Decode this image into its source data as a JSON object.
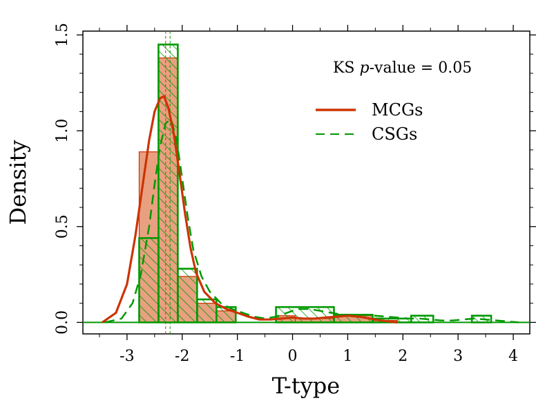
{
  "chart_data": {
    "type": "histogram-density",
    "xlabel": "T-type",
    "ylabel": "Density",
    "xlim": [
      -3.8,
      4.3
    ],
    "ylim": [
      -0.06,
      1.52
    ],
    "x_ticks": [
      -3,
      -2,
      -1,
      0,
      1,
      2,
      3,
      4
    ],
    "x_tick_labels": [
      "-3",
      "-2",
      "-1",
      "0",
      "1",
      "2",
      "3",
      "4"
    ],
    "y_ticks": [
      0.0,
      0.5,
      1.0,
      1.5
    ],
    "y_tick_labels": [
      "0.0",
      "0.5",
      "1.0",
      "1.5"
    ],
    "annotation": {
      "prefix": "KS ",
      "italic": "p",
      "suffix": "-value = 0.05"
    },
    "colors": {
      "mcg": "#cc3300",
      "mcg_fill": "#e8a080",
      "csg": "#009900"
    },
    "legend": [
      {
        "label": "MCGs",
        "style": "solid"
      },
      {
        "label": "CSGs",
        "style": "dashed"
      }
    ],
    "series": [
      {
        "name": "MCGs",
        "kind": "histogram",
        "bins": [
          {
            "x0": -2.78,
            "x1": -2.43,
            "density": 0.89
          },
          {
            "x0": -2.43,
            "x1": -2.08,
            "density": 1.38
          },
          {
            "x0": -2.08,
            "x1": -1.73,
            "density": 0.24
          },
          {
            "x0": -1.73,
            "x1": -1.38,
            "density": 0.1
          },
          {
            "x0": -1.38,
            "x1": -1.03,
            "density": 0.06
          },
          {
            "x0": -0.3,
            "x1": 0.05,
            "density": 0.035
          },
          {
            "x0": 0.05,
            "x1": 0.75,
            "density": 0.02
          },
          {
            "x0": 0.75,
            "x1": 1.45,
            "density": 0.035
          },
          {
            "x0": 1.45,
            "x1": 1.9,
            "density": 0.01
          }
        ]
      },
      {
        "name": "CSGs",
        "kind": "histogram",
        "bins": [
          {
            "x0": -2.78,
            "x1": -2.43,
            "density": 0.44
          },
          {
            "x0": -2.43,
            "x1": -2.08,
            "density": 1.45
          },
          {
            "x0": -2.08,
            "x1": -1.73,
            "density": 0.28
          },
          {
            "x0": -1.73,
            "x1": -1.38,
            "density": 0.12
          },
          {
            "x0": -1.38,
            "x1": -1.03,
            "density": 0.08
          },
          {
            "x0": -0.3,
            "x1": 0.75,
            "density": 0.08
          },
          {
            "x0": 0.75,
            "x1": 1.45,
            "density": 0.04
          },
          {
            "x0": 1.45,
            "x1": 2.15,
            "density": 0.02
          },
          {
            "x0": 2.15,
            "x1": 2.55,
            "density": 0.035
          },
          {
            "x0": 2.55,
            "x1": 3.25,
            "density": 0.0
          },
          {
            "x0": 3.25,
            "x1": 3.6,
            "density": 0.035
          }
        ]
      },
      {
        "name": "MCGs density",
        "kind": "kde",
        "x": [
          -3.45,
          -3.2,
          -3.0,
          -2.85,
          -2.7,
          -2.6,
          -2.5,
          -2.4,
          -2.33,
          -2.25,
          -2.15,
          -2.05,
          -1.95,
          -1.85,
          -1.75,
          -1.6,
          -1.4,
          -1.2,
          -1.0,
          -0.8,
          -0.6,
          -0.4,
          -0.2,
          0.0,
          0.2,
          0.4,
          0.6,
          0.8,
          1.0,
          1.2,
          1.4,
          1.6,
          1.9
        ],
        "y": [
          0.0,
          0.05,
          0.2,
          0.45,
          0.75,
          0.95,
          1.1,
          1.17,
          1.18,
          1.12,
          0.98,
          0.78,
          0.57,
          0.39,
          0.26,
          0.16,
          0.1,
          0.07,
          0.05,
          0.03,
          0.015,
          0.015,
          0.02,
          0.025,
          0.02,
          0.02,
          0.025,
          0.03,
          0.035,
          0.03,
          0.02,
          0.01,
          0.0
        ]
      },
      {
        "name": "CSGs density",
        "kind": "kde",
        "x": [
          -3.4,
          -3.1,
          -2.9,
          -2.75,
          -2.6,
          -2.5,
          -2.4,
          -2.3,
          -2.2,
          -2.1,
          -2.0,
          -1.9,
          -1.8,
          -1.65,
          -1.5,
          -1.3,
          -1.1,
          -0.9,
          -0.7,
          -0.5,
          -0.3,
          -0.1,
          0.1,
          0.3,
          0.5,
          0.7,
          0.9,
          1.1,
          1.3,
          1.5,
          1.7,
          1.9,
          2.1,
          2.3,
          2.5,
          2.7,
          2.9,
          3.1,
          3.3,
          3.5,
          3.7,
          3.9,
          4.1
        ],
        "y": [
          0.0,
          0.02,
          0.1,
          0.25,
          0.5,
          0.72,
          0.92,
          1.04,
          1.06,
          0.95,
          0.75,
          0.55,
          0.38,
          0.24,
          0.16,
          0.1,
          0.07,
          0.05,
          0.03,
          0.02,
          0.03,
          0.05,
          0.07,
          0.07,
          0.06,
          0.05,
          0.04,
          0.04,
          0.04,
          0.035,
          0.03,
          0.025,
          0.02,
          0.02,
          0.015,
          0.01,
          0.01,
          0.015,
          0.02,
          0.015,
          0.01,
          0.005,
          0.0
        ]
      }
    ],
    "median_lines": [
      {
        "series": "MCGs",
        "x": -2.3
      },
      {
        "series": "CSGs",
        "x": -2.22
      }
    ]
  }
}
